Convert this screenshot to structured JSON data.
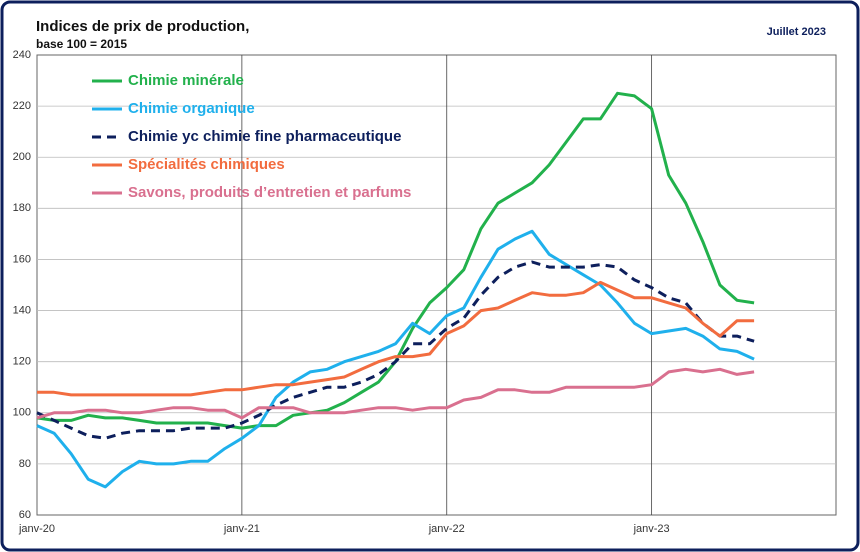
{
  "chart_data": {
    "type": "line",
    "title": "Indices de prix de production,",
    "subtitle": "base 100 = 2015",
    "annotation": "Juillet 2023",
    "categories": [
      "janv-20",
      null,
      null,
      null,
      null,
      null,
      null,
      null,
      null,
      null,
      null,
      null,
      "janv-21",
      null,
      null,
      null,
      null,
      null,
      null,
      null,
      null,
      null,
      null,
      null,
      "janv-22",
      null,
      null,
      null,
      null,
      null,
      null,
      null,
      null,
      null,
      null,
      null,
      "janv-23",
      null,
      null,
      null,
      null,
      null,
      null
    ],
    "ylim": [
      60,
      240
    ],
    "yticks": [
      60,
      80,
      100,
      120,
      140,
      160,
      180,
      200,
      220,
      240
    ],
    "grid": true,
    "legend": "upper left",
    "series": [
      {
        "name": "Chimie minérale",
        "color": "#22b14c",
        "values": [
          98,
          97,
          97,
          99,
          98,
          98,
          97,
          96,
          96,
          96,
          96,
          95,
          94,
          95,
          95,
          99,
          100,
          101,
          104,
          108,
          112,
          120,
          133,
          143,
          149,
          156,
          172,
          182,
          186,
          190,
          197,
          206,
          215,
          215,
          225,
          224,
          219,
          193,
          182,
          167,
          150,
          144,
          143
        ]
      },
      {
        "name": "Chimie organique",
        "color": "#1fb0ec",
        "values": [
          95,
          92,
          84,
          74,
          71,
          77,
          81,
          80,
          80,
          81,
          81,
          86,
          90,
          95,
          106,
          112,
          116,
          117,
          120,
          122,
          124,
          127,
          135,
          131,
          138,
          141,
          153,
          164,
          168,
          171,
          162,
          158,
          154,
          150,
          143,
          135,
          131,
          132,
          133,
          130,
          125,
          124,
          121
        ]
      },
      {
        "name": "Chimie yc chimie fine pharmaceutique",
        "color": "#0d1f5c",
        "dashed": true,
        "values": [
          100,
          97,
          94,
          91,
          90,
          92,
          93,
          93,
          93,
          94,
          94,
          94,
          96,
          99,
          103,
          106,
          108,
          110,
          110,
          112,
          115,
          120,
          127,
          127,
          133,
          137,
          146,
          153,
          157,
          159,
          157,
          157,
          157,
          158,
          157,
          152,
          149,
          145,
          143,
          135,
          130,
          130,
          128
        ]
      },
      {
        "name": "Spécialités chimiques",
        "color": "#f26c3f",
        "values": [
          108,
          108,
          107,
          107,
          107,
          107,
          107,
          107,
          107,
          107,
          108,
          109,
          109,
          110,
          111,
          111,
          112,
          113,
          114,
          117,
          120,
          122,
          122,
          123,
          131,
          134,
          140,
          141,
          144,
          147,
          146,
          146,
          147,
          151,
          148,
          145,
          145,
          143,
          141,
          135,
          130,
          136,
          136
        ]
      },
      {
        "name": "Savons, produits d’entretien et parfums",
        "color": "#d9708f",
        "values": [
          98,
          100,
          100,
          101,
          101,
          100,
          100,
          101,
          102,
          102,
          101,
          101,
          98,
          102,
          102,
          102,
          100,
          100,
          100,
          101,
          102,
          102,
          101,
          102,
          102,
          105,
          106,
          109,
          109,
          108,
          108,
          110,
          110,
          110,
          110,
          110,
          111,
          116,
          117,
          116,
          117,
          115,
          116
        ]
      }
    ]
  }
}
